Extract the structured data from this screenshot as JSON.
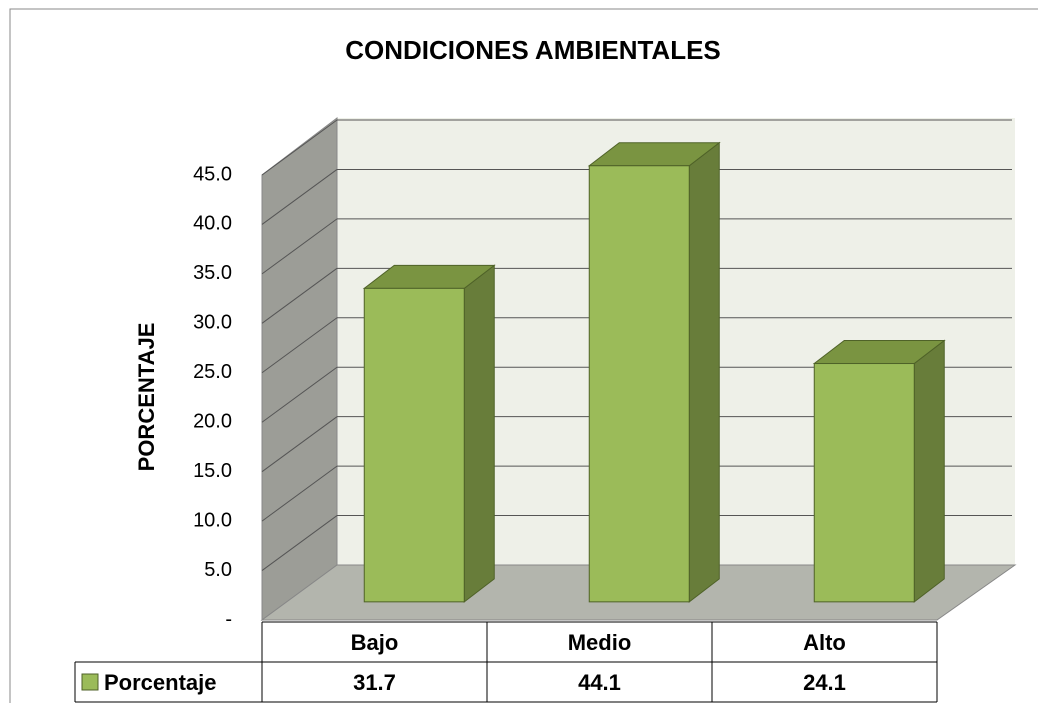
{
  "chart_data": {
    "type": "bar3d",
    "title": "CONDICIONES AMBIENTALES",
    "y_label": "PORCENTAJE",
    "categories": [
      "Bajo",
      "Medio",
      "Alto"
    ],
    "series": [
      {
        "name": "Porcentaje",
        "color": "#9bbb59",
        "values": [
          31.7,
          44.1,
          24.1
        ]
      }
    ],
    "ylim": [
      0,
      45
    ],
    "yticks": [
      {
        "value": 0,
        "label": "-"
      },
      {
        "value": 5,
        "label": "5.0"
      },
      {
        "value": 10,
        "label": "10.0"
      },
      {
        "value": 15,
        "label": "15.0"
      },
      {
        "value": 20,
        "label": "20.0"
      },
      {
        "value": 25,
        "label": "25.0"
      },
      {
        "value": 30,
        "label": "30.0"
      },
      {
        "value": 35,
        "label": "35.0"
      },
      {
        "value": 40,
        "label": "40.0"
      },
      {
        "value": 45,
        "label": "45.0"
      }
    ],
    "grid": true,
    "data_table": true
  }
}
